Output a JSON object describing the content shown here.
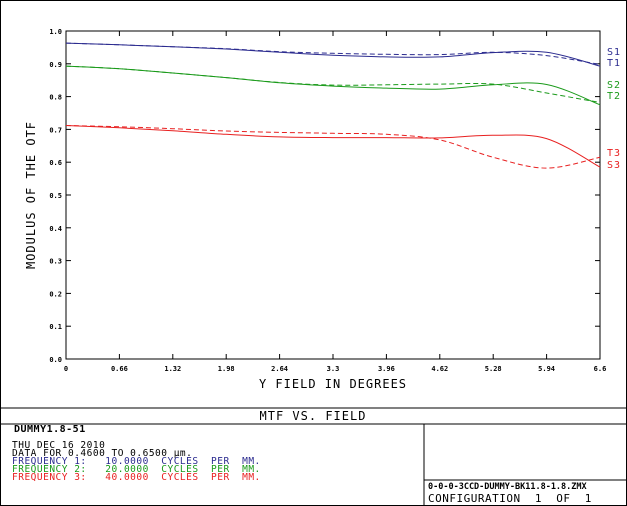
{
  "chart_data": {
    "type": "line",
    "title": "MTF VS. FIELD",
    "xlabel": "Y FIELD IN DEGREES",
    "ylabel": "MODULUS OF THE OTF",
    "xlim": [
      0,
      6.6
    ],
    "ylim": [
      0,
      1.0
    ],
    "x_ticks": [
      "0",
      "0.66",
      "1.32",
      "1.98",
      "2.64",
      "3.3",
      "3.96",
      "4.62",
      "5.28",
      "5.94",
      "6.6"
    ],
    "y_ticks": [
      "0.0",
      "0.1",
      "0.2",
      "0.3",
      "0.4",
      "0.5",
      "0.6",
      "0.7",
      "0.8",
      "0.9",
      "1.0"
    ],
    "grid": false,
    "x": [
      0,
      0.66,
      1.32,
      1.98,
      2.64,
      3.3,
      3.96,
      4.62,
      5.28,
      5.94,
      6.6
    ],
    "series": [
      {
        "name": "T1",
        "frequency": 1,
        "color": "#2b2b8f",
        "dash": false,
        "values": [
          0.963,
          0.958,
          0.952,
          0.945,
          0.935,
          0.926,
          0.921,
          0.921,
          0.934,
          0.935,
          0.893
        ]
      },
      {
        "name": "S1",
        "frequency": 1,
        "color": "#2b2b8f",
        "dash": true,
        "values": [
          0.963,
          0.958,
          0.952,
          0.946,
          0.937,
          0.932,
          0.929,
          0.928,
          0.935,
          0.925,
          0.898
        ]
      },
      {
        "name": "T2",
        "frequency": 2,
        "color": "#1a9a1a",
        "dash": false,
        "values": [
          0.893,
          0.885,
          0.872,
          0.858,
          0.842,
          0.832,
          0.826,
          0.823,
          0.836,
          0.837,
          0.775
        ]
      },
      {
        "name": "S2",
        "frequency": 2,
        "color": "#1a9a1a",
        "dash": true,
        "values": [
          0.893,
          0.885,
          0.872,
          0.858,
          0.843,
          0.835,
          0.836,
          0.838,
          0.838,
          0.811,
          0.782
        ]
      },
      {
        "name": "T3",
        "frequency": 3,
        "color": "#e82020",
        "dash": false,
        "values": [
          0.712,
          0.705,
          0.696,
          0.685,
          0.677,
          0.675,
          0.675,
          0.674,
          0.682,
          0.672,
          0.585
        ]
      },
      {
        "name": "S3",
        "frequency": 3,
        "color": "#e82020",
        "dash": true,
        "values": [
          0.712,
          0.708,
          0.702,
          0.695,
          0.691,
          0.688,
          0.685,
          0.668,
          0.615,
          0.582,
          0.615
        ]
      }
    ],
    "legend": [
      {
        "label": "S1",
        "color": "#2b2b8f"
      },
      {
        "label": "T1",
        "color": "#2b2b8f"
      },
      {
        "label": "S2",
        "color": "#1a9a1a"
      },
      {
        "label": "T2",
        "color": "#1a9a1a"
      },
      {
        "label": "T3",
        "color": "#e82020"
      },
      {
        "label": "S3",
        "color": "#e82020"
      }
    ]
  },
  "info": {
    "lens_name": "DUMMY1.8-51",
    "date": "THU DEC 16 2010",
    "data_range": "DATA FOR 0.4600 TO 0.6500 µm.",
    "frequencies": [
      {
        "text": "FREQUENCY 1:   10.0000  CYCLES  PER  MM.",
        "color": "#2b2b8f"
      },
      {
        "text": "FREQUENCY 2:   20.0000  CYCLES  PER  MM.",
        "color": "#1a9a1a"
      },
      {
        "text": "FREQUENCY 3:   40.0000  CYCLES  PER  MM.",
        "color": "#e82020"
      }
    ],
    "file_name": "0-0-0-3CCD-DUMMY-BK11.8-1.8.ZMX",
    "configuration": "CONFIGURATION  1  OF  1"
  }
}
